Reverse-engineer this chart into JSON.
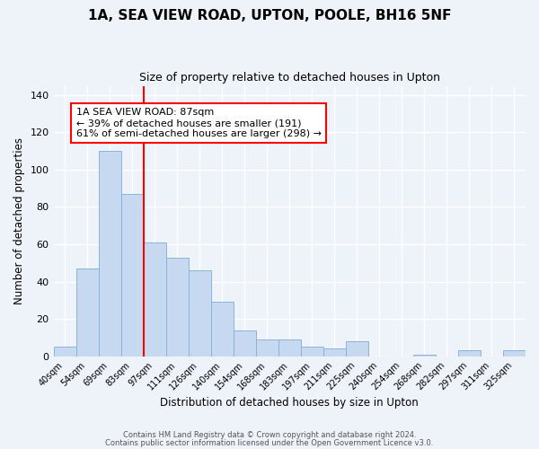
{
  "title": "1A, SEA VIEW ROAD, UPTON, POOLE, BH16 5NF",
  "subtitle": "Size of property relative to detached houses in Upton",
  "xlabel": "Distribution of detached houses by size in Upton",
  "ylabel": "Number of detached properties",
  "categories": [
    "40sqm",
    "54sqm",
    "69sqm",
    "83sqm",
    "97sqm",
    "111sqm",
    "126sqm",
    "140sqm",
    "154sqm",
    "168sqm",
    "183sqm",
    "197sqm",
    "211sqm",
    "225sqm",
    "240sqm",
    "254sqm",
    "268sqm",
    "282sqm",
    "297sqm",
    "311sqm",
    "325sqm"
  ],
  "values": [
    5,
    47,
    110,
    87,
    61,
    53,
    46,
    29,
    14,
    9,
    9,
    5,
    4,
    8,
    0,
    0,
    1,
    0,
    3,
    0,
    3
  ],
  "bar_color": "#c7d9f0",
  "bar_edge_color": "#8ab4d8",
  "red_line_x": 3.5,
  "red_line_label": "1A SEA VIEW ROAD: 87sqm",
  "annotation_line1": "← 39% of detached houses are smaller (191)",
  "annotation_line2": "61% of semi-detached houses are larger (298) →",
  "ylim": [
    0,
    145
  ],
  "yticks": [
    0,
    20,
    40,
    60,
    80,
    100,
    120,
    140
  ],
  "footer1": "Contains HM Land Registry data © Crown copyright and database right 2024.",
  "footer2": "Contains public sector information licensed under the Open Government Licence v3.0.",
  "background_color": "#eef2f9",
  "grid_color": "#ffffff",
  "title_fontsize": 11,
  "subtitle_fontsize": 9
}
